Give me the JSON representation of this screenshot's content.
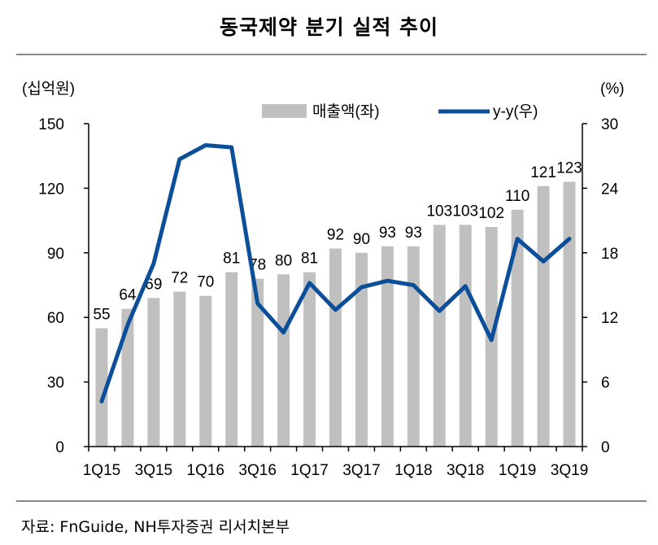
{
  "page_title": "동국제약 분기 실적 추이",
  "source": "자료: FnGuide, NH투자증권 리서치본부",
  "colors": {
    "bar": "#c0c0c0",
    "line": "#0b4f9a",
    "axis": "#000000",
    "rule": "#8a8a8a"
  },
  "chart_data": {
    "type": "bar+line",
    "title": "동국제약 분기 실적 추이",
    "categories": [
      "1Q15",
      "2Q15",
      "3Q15",
      "4Q15",
      "1Q16",
      "2Q16",
      "3Q16",
      "4Q16",
      "1Q17",
      "2Q17",
      "3Q17",
      "4Q17",
      "1Q18",
      "2Q18",
      "3Q18",
      "4Q18",
      "1Q19",
      "2Q19",
      "3Q19"
    ],
    "x_tick_labels": [
      "1Q15",
      "3Q15",
      "1Q16",
      "3Q16",
      "1Q17",
      "3Q17",
      "1Q18",
      "3Q18",
      "1Q19",
      "3Q19"
    ],
    "series": [
      {
        "name": "매출액(좌)",
        "type": "bar",
        "axis": "left",
        "values": [
          55,
          64,
          69,
          72,
          70,
          81,
          78,
          80,
          81,
          92,
          90,
          93,
          93,
          103,
          103,
          102,
          110,
          121,
          123
        ]
      },
      {
        "name": "y-y(우)",
        "type": "line",
        "axis": "right",
        "values": [
          4.2,
          11.3,
          17.0,
          26.7,
          28.0,
          27.8,
          13.3,
          10.6,
          15.2,
          12.7,
          14.8,
          15.4,
          15.0,
          12.6,
          14.9,
          9.9,
          19.3,
          17.2,
          19.3
        ]
      }
    ],
    "left_axis": {
      "unit_label": "(십억원)",
      "min": 0,
      "max": 150,
      "ticks": [
        0,
        30,
        60,
        90,
        120,
        150
      ]
    },
    "right_axis": {
      "unit_label": "(%)",
      "min": 0,
      "max": 30,
      "ticks": [
        0,
        6,
        12,
        18,
        24,
        30
      ]
    },
    "legend": {
      "position": "top-right",
      "bar_label": "매출액(좌)",
      "line_label": "y-y(우)"
    }
  }
}
